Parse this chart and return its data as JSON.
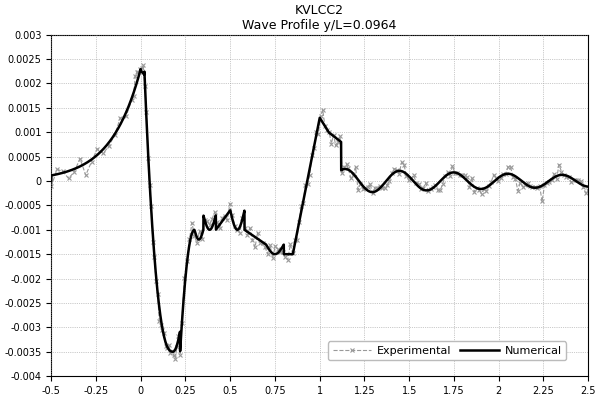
{
  "title_line1": "KVLCC2",
  "title_line2": "Wave Profile y/L=0.0964",
  "xlim": [
    -0.5,
    2.5
  ],
  "ylim": [
    -0.004,
    0.003
  ],
  "xticks": [
    -0.5,
    -0.25,
    0,
    0.25,
    0.5,
    0.75,
    1,
    1.25,
    1.5,
    1.75,
    2,
    2.25,
    2.5
  ],
  "yticks": [
    -0.004,
    -0.0035,
    -0.003,
    -0.0025,
    -0.002,
    -0.0015,
    -0.001,
    -0.0005,
    0,
    0.0005,
    0.001,
    0.0015,
    0.002,
    0.0025,
    0.003
  ],
  "legend_labels": [
    "Experimental",
    "Numerical"
  ],
  "background_color": "#ffffff",
  "grid_color": "#999999",
  "num_color": "#000000",
  "exp_color": "#999999",
  "title_fontsize": 9,
  "legend_fontsize": 8,
  "tick_fontsize": 7,
  "num_linewidth": 1.8,
  "exp_linewidth": 0.8,
  "exp_markersize": 3.5
}
